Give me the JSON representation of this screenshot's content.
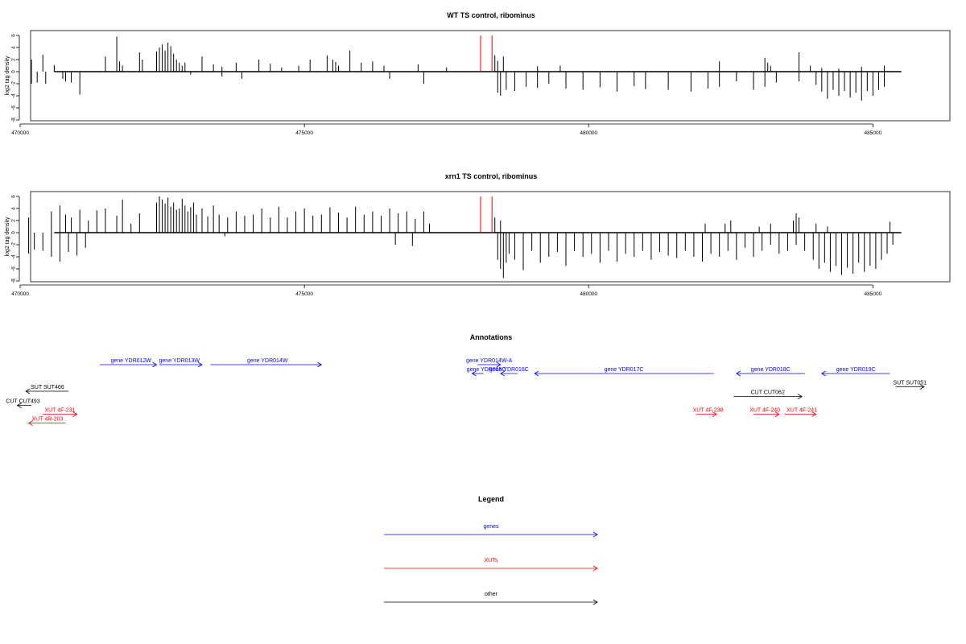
{
  "chart_data": [
    {
      "type": "bar",
      "title": "WT TS control, ribominus",
      "ylabel": "log2 tag density",
      "xlim": [
        470000,
        486000
      ],
      "ylim": [
        -8,
        6.5
      ],
      "xticks": [
        470000,
        475000,
        480000,
        485000
      ],
      "yticks": [
        -8,
        -6,
        -4,
        -2,
        0,
        2,
        4,
        6
      ],
      "grid": false,
      "series": [
        {
          "strand": "+",
          "color": "#000000",
          "x": [
            470200,
            470400,
            470600,
            471500,
            471700,
            471750,
            471800,
            472100,
            472150,
            472400,
            472450,
            472500,
            472550,
            472600,
            472650,
            472700,
            472750,
            472800,
            472850,
            472900,
            473200,
            473400,
            473550,
            473800,
            474200,
            474400,
            474600,
            474900,
            475100,
            475400,
            475500,
            475550,
            475600,
            475800,
            476000,
            476200,
            476400,
            477000,
            477500,
            478350,
            478400,
            478500,
            479100,
            479500,
            482300,
            483100,
            483150,
            483200,
            483700,
            483900,
            484100,
            484400,
            484800,
            485200
          ],
          "values": [
            2.0,
            2.8,
            1.1,
            2.5,
            5.8,
            1.7,
            1.0,
            3.2,
            2.0,
            3.3,
            4.0,
            4.5,
            3.5,
            4.8,
            4.2,
            3.0,
            2.0,
            1.5,
            1.0,
            1.5,
            2.5,
            1.2,
            0.8,
            1.5,
            2.0,
            1.3,
            0.7,
            1.0,
            2.0,
            2.7,
            2.0,
            1.6,
            1.0,
            3.5,
            1.5,
            1.7,
            1.0,
            1.2,
            0.7,
            2.7,
            1.8,
            2.5,
            0.9,
            1.0,
            1.7,
            2.3,
            1.5,
            1.0,
            3.2,
            1.0,
            0.6,
            0.5,
            0.8,
            1.0
          ]
        },
        {
          "strand": "-",
          "color": "#000000",
          "x": [
            470200,
            470300,
            470450,
            470750,
            470800,
            470900,
            471050,
            473000,
            473550,
            473900,
            476500,
            477100,
            478400,
            478450,
            478550,
            478700,
            478900,
            479100,
            479300,
            479600,
            479900,
            480200,
            480500,
            480800,
            481000,
            481400,
            481800,
            482100,
            482300,
            482600,
            482900,
            483100,
            483300,
            483700,
            484000,
            484100,
            484200,
            484300,
            484400,
            484500,
            484600,
            484700,
            484800,
            484900,
            485000,
            485100,
            485200
          ],
          "values": [
            -2.0,
            -1.8,
            -2.0,
            -1.2,
            -1.6,
            -1.8,
            -3.8,
            -0.5,
            -0.8,
            -1.2,
            -1.2,
            -2.0,
            -3.5,
            -4.0,
            -3.0,
            -3.2,
            -2.5,
            -2.7,
            -2.0,
            -2.8,
            -3.0,
            -2.6,
            -3.3,
            -2.4,
            -2.9,
            -3.0,
            -3.3,
            -2.8,
            -2.5,
            -1.6,
            -3.0,
            -2.5,
            -1.8,
            -1.6,
            -2.2,
            -3.3,
            -4.5,
            -3.0,
            -4.0,
            -3.2,
            -4.3,
            -3.5,
            -4.8,
            -3.2,
            -4.0,
            -3.0,
            -2.5
          ]
        },
        {
          "name": "",
          "color": "#ff0000",
          "x": [
            478100,
            478300
          ],
          "values": [
            6.0,
            6.0
          ]
        }
      ]
    },
    {
      "type": "bar",
      "title": "xrn1 TS control, ribominus",
      "ylabel": "log2 tag density",
      "xlim": [
        470000,
        486000
      ],
      "ylim": [
        -8,
        6.5
      ],
      "xticks": [
        470000,
        475000,
        480000,
        485000
      ],
      "yticks": [
        -8,
        -6,
        -4,
        -2,
        0,
        2,
        4,
        6
      ],
      "grid": false,
      "series": [
        {
          "strand": "+",
          "color": "#000000",
          "x": [
            470150,
            470550,
            470700,
            470800,
            470900,
            471050,
            471200,
            471350,
            471500,
            471700,
            471800,
            471950,
            472100,
            472400,
            472450,
            472500,
            472550,
            472600,
            472650,
            472700,
            472750,
            472800,
            472850,
            472900,
            472950,
            473000,
            473050,
            473100,
            473200,
            473300,
            473400,
            473500,
            473650,
            473800,
            473950,
            474100,
            474250,
            474400,
            474550,
            474700,
            474850,
            475000,
            475150,
            475300,
            475450,
            475600,
            475750,
            475900,
            476050,
            476200,
            476350,
            476500,
            476650,
            476800,
            476950,
            477100,
            477200,
            478350,
            478450,
            482050,
            482400,
            482500,
            483000,
            483200,
            483600,
            483650,
            483700,
            484000,
            484200,
            485300
          ],
          "values": [
            2.5,
            3.5,
            4.5,
            3.0,
            2.5,
            3.8,
            2.0,
            3.7,
            4.0,
            2.8,
            5.5,
            1.5,
            3.2,
            5.0,
            6.0,
            5.5,
            4.8,
            5.8,
            4.3,
            5.0,
            3.8,
            4.0,
            5.6,
            4.5,
            3.5,
            4.2,
            5.0,
            3.0,
            4.0,
            2.7,
            4.5,
            3.0,
            2.5,
            3.5,
            2.8,
            3.0,
            4.0,
            2.5,
            4.3,
            2.5,
            3.5,
            4.0,
            2.8,
            3.0,
            4.2,
            3.3,
            2.5,
            4.3,
            3.0,
            3.5,
            2.8,
            4.0,
            3.2,
            3.5,
            2.3,
            3.5,
            1.5,
            2.5,
            2.0,
            1.5,
            1.5,
            2.0,
            1.0,
            1.5,
            2.0,
            3.2,
            2.5,
            1.5,
            1.0,
            1.8
          ]
        },
        {
          "strand": "-",
          "color": "#000000",
          "x": [
            470150,
            470250,
            470400,
            470550,
            470700,
            470850,
            471000,
            471150,
            473600,
            476600,
            476900,
            478400,
            478450,
            478500,
            478550,
            478600,
            478700,
            478850,
            479000,
            479150,
            479300,
            479450,
            479600,
            479750,
            479900,
            480050,
            480200,
            480350,
            480500,
            480650,
            480800,
            480950,
            481100,
            481250,
            481400,
            481550,
            481700,
            481850,
            482000,
            482150,
            482300,
            482450,
            482600,
            482750,
            482900,
            483050,
            483200,
            483350,
            483500,
            483650,
            483800,
            483950,
            484050,
            484150,
            484250,
            484350,
            484450,
            484550,
            484650,
            484750,
            484850,
            484950,
            485050,
            485150,
            485250,
            485350
          ],
          "values": [
            -3.5,
            -2.8,
            -3.0,
            -4.0,
            -4.8,
            -3.2,
            -3.8,
            -2.5,
            -0.6,
            -2.0,
            -2.2,
            -4.5,
            -6.0,
            -7.5,
            -5.0,
            -3.5,
            -4.5,
            -6.2,
            -3.0,
            -5.0,
            -4.0,
            -3.2,
            -5.5,
            -3.0,
            -4.0,
            -3.5,
            -5.0,
            -3.0,
            -4.8,
            -3.5,
            -4.0,
            -3.0,
            -4.5,
            -3.2,
            -3.8,
            -4.2,
            -3.0,
            -4.0,
            -4.8,
            -3.5,
            -4.0,
            -3.0,
            -4.5,
            -2.5,
            -4.0,
            -3.0,
            -2.0,
            -3.5,
            -3.0,
            -2.0,
            -3.0,
            -4.5,
            -6.0,
            -5.0,
            -6.5,
            -5.5,
            -7.0,
            -5.8,
            -6.8,
            -5.0,
            -6.5,
            -5.5,
            -6.0,
            -4.5,
            -3.5,
            -2.0
          ]
        },
        {
          "name": "",
          "color": "#ff0000",
          "x": [
            478100,
            478300
          ],
          "values": [
            6.0,
            6.0
          ]
        }
      ]
    }
  ],
  "annotations": {
    "title": "Annotations",
    "xlim": [
      470000,
      486000
    ],
    "features": [
      {
        "label": "gene YDR012W",
        "start": 471400,
        "end": 472400,
        "strand": "+",
        "color": "#0000ff",
        "row": 0,
        "label_pos": 471950
      },
      {
        "label": "gene YDR013W",
        "start": 472450,
        "end": 473200,
        "strand": "+",
        "color": "#0000ff",
        "row": 0,
        "label_pos": 472800
      },
      {
        "label": "gene YDR014W",
        "start": 473350,
        "end": 475300,
        "strand": "+",
        "color": "#0000ff",
        "row": 0,
        "label_pos": 474350
      },
      {
        "label": "gene YDR014W-A",
        "start": 478050,
        "end": 478450,
        "strand": "+",
        "color": "#0000ff",
        "row": 0,
        "label_pos": 478250
      },
      {
        "label": "gene YDR015C",
        "start": 477950,
        "end": 478150,
        "strand": "-",
        "color": "#0000ff",
        "row": 1,
        "label_pos": 478200
      },
      {
        "label": "gene YDR016C",
        "start": 478450,
        "end": 478750,
        "strand": "-",
        "color": "#0000ff",
        "row": 1,
        "label_pos": 478600
      },
      {
        "label": "gene YDR017C",
        "start": 479050,
        "end": 482200,
        "strand": "-",
        "color": "#0000ff",
        "row": 1,
        "label_pos": 480620
      },
      {
        "label": "gene YDR018C",
        "start": 482600,
        "end": 483800,
        "strand": "-",
        "color": "#0000ff",
        "row": 1,
        "label_pos": 483200
      },
      {
        "label": "gene YDR019C",
        "start": 484100,
        "end": 485300,
        "strand": "-",
        "color": "#0000ff",
        "row": 1,
        "label_pos": 484700
      },
      {
        "label": "SUT SUT466",
        "start": 470100,
        "end": 470850,
        "strand": "-",
        "color": "#000000",
        "row": 3,
        "label_pos": 470480
      },
      {
        "label": "SUT SUT051",
        "start": 485400,
        "end": 485900,
        "strand": "+",
        "color": "#000000",
        "row": 2.5,
        "label_pos": 485650
      },
      {
        "label": "CUT CUT062",
        "start": 482550,
        "end": 483750,
        "strand": "+",
        "color": "#000000",
        "row": 3.6,
        "label_pos": 483150
      },
      {
        "label": "CUT CUT493",
        "start": 469950,
        "end": 470200,
        "strand": "-",
        "color": "#000000",
        "row": 4.6,
        "label_pos": 470050
      },
      {
        "label": "XUT 4F-231",
        "start": 470400,
        "end": 471000,
        "strand": "+",
        "color": "#ff0000",
        "row": 5.6,
        "label_pos": 470700
      },
      {
        "label": "XUT 4R-203",
        "start": 470150,
        "end": 470800,
        "strand": "-",
        "color": "#ff0000",
        "row": 6.6,
        "label_pos": 470480
      },
      {
        "label": "XUT 4F-238",
        "start": 481900,
        "end": 482250,
        "strand": "+",
        "color": "#ff0000",
        "row": 5.6,
        "label_pos": 482100
      },
      {
        "label": "XUT 4F-240",
        "start": 482900,
        "end": 483350,
        "strand": "+",
        "color": "#ff0000",
        "row": 5.6,
        "label_pos": 483100
      },
      {
        "label": "XUT 4F-241",
        "start": 483450,
        "end": 484000,
        "strand": "+",
        "color": "#ff0000",
        "row": 5.6,
        "label_pos": 483750
      }
    ]
  },
  "legend": {
    "title": "Legend",
    "items": [
      {
        "label": "genes",
        "color": "#0000ff"
      },
      {
        "label": "XUTs",
        "color": "#ff0000"
      },
      {
        "label": "other",
        "color": "#000000"
      }
    ]
  }
}
